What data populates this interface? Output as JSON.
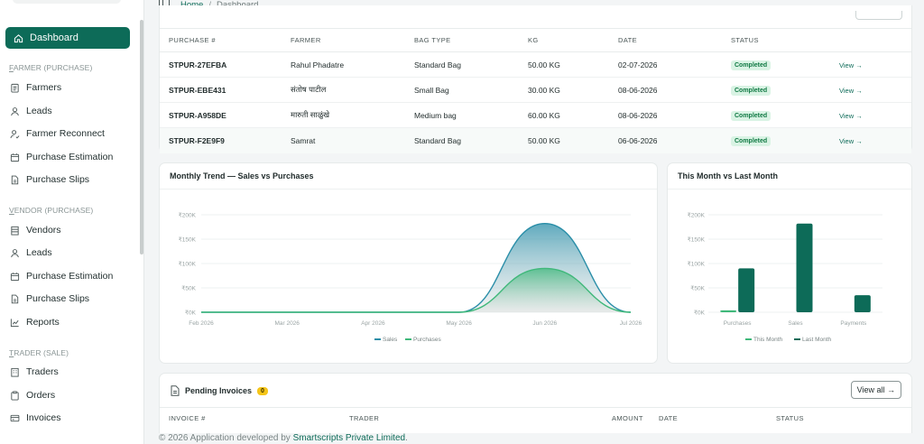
{
  "sidebar": {
    "active": {
      "label": "Dashboard",
      "icon": "home-icon"
    },
    "sections": [
      {
        "label": "FARMER (PURCHASE)",
        "items": [
          {
            "label": "Farmers",
            "icon": "clipboard-icon"
          },
          {
            "label": "Leads",
            "icon": "user-icon"
          },
          {
            "label": "Farmer Reconnect",
            "icon": "user-check-icon"
          },
          {
            "label": "Purchase Estimation",
            "icon": "calculator-icon"
          },
          {
            "label": "Purchase Slips",
            "icon": "file-icon"
          }
        ]
      },
      {
        "label": "VENDOR (PURCHASE)",
        "items": [
          {
            "label": "Vendors",
            "icon": "store-icon"
          },
          {
            "label": "Leads",
            "icon": "user-icon"
          },
          {
            "label": "Purchase Estimation",
            "icon": "calculator-icon"
          },
          {
            "label": "Purchase Slips",
            "icon": "file-icon"
          },
          {
            "label": "Reports",
            "icon": "chart-icon"
          }
        ]
      },
      {
        "label": "TRADER (SALE)",
        "items": [
          {
            "label": "Traders",
            "icon": "building-icon"
          },
          {
            "label": "Orders",
            "icon": "clipboard-icon"
          },
          {
            "label": "Invoices",
            "icon": "invoice-icon"
          }
        ]
      }
    ]
  },
  "breadcrumb": {
    "home": "Home",
    "current": "Dashboard"
  },
  "purchases": {
    "columns": [
      "PURCHASE #",
      "FARMER",
      "BAG TYPE",
      "KG",
      "DATE",
      "STATUS",
      ""
    ],
    "rows": [
      {
        "id": "STPUR-27EFBA",
        "farmer": "Rahul Phadatre",
        "bag": "Standard Bag",
        "kg": "50.00 KG",
        "date": "02-07-2026",
        "status": "Completed",
        "action": "View →"
      },
      {
        "id": "STPUR-EBE431",
        "farmer": "संतोष पाटील",
        "bag": "Small Bag",
        "kg": "30.00 KG",
        "date": "08-06-2026",
        "status": "Completed",
        "action": "View →"
      },
      {
        "id": "STPUR-A958DE",
        "farmer": "मारुती साळुंखे",
        "bag": "Medium bag",
        "kg": "60.00 KG",
        "date": "08-06-2026",
        "status": "Completed",
        "action": "View →"
      },
      {
        "id": "STPUR-F2E9F9",
        "farmer": "Samrat",
        "bag": "Standard Bag",
        "kg": "50.00 KG",
        "date": "06-06-2026",
        "status": "Completed",
        "action": "View →"
      }
    ]
  },
  "trend": {
    "title": "Monthly Trend — Sales vs Purchases"
  },
  "compare": {
    "title": "This Month vs Last Month"
  },
  "chart_data": [
    {
      "type": "area",
      "title": "Monthly Trend — Sales vs Purchases",
      "x": [
        "Feb 2026",
        "Mar 2026",
        "Apr 2026",
        "May 2026",
        "Jun 2026",
        "Jul 2026"
      ],
      "yticks": [
        "₹0K",
        "₹50K",
        "₹100K",
        "₹150K",
        "₹200K"
      ],
      "ylim": [
        0,
        200000
      ],
      "series": [
        {
          "name": "Sales",
          "values": [
            0,
            0,
            0,
            0,
            182000,
            0
          ],
          "color": "#2a8ea8"
        },
        {
          "name": "Purchases",
          "values": [
            0,
            0,
            0,
            0,
            90000,
            0
          ],
          "color": "#3fb87a"
        }
      ],
      "legend": "bottom",
      "grid": true
    },
    {
      "type": "bar",
      "title": "This Month vs Last Month",
      "categories": [
        "Purchases",
        "Sales",
        "Payments"
      ],
      "yticks": [
        "₹0K",
        "₹50K",
        "₹100K",
        "₹150K",
        "₹200K"
      ],
      "ylim": [
        0,
        200000
      ],
      "series": [
        {
          "name": "This Month",
          "values": [
            4000,
            0,
            0
          ],
          "color": "#3fb87a"
        },
        {
          "name": "Last Month",
          "values": [
            90000,
            182000,
            35000
          ],
          "color": "#0d6b58"
        }
      ],
      "legend": "bottom",
      "grid": true
    }
  ],
  "invoices": {
    "title": "Pending Invoices",
    "count": "0",
    "view_all": "View all →",
    "columns": [
      "INVOICE #",
      "TRADER",
      "AMOUNT",
      "DATE",
      "STATUS"
    ]
  },
  "footer": {
    "prefix": "© 2026 Application developed by ",
    "company": "Smartscripts Private Limited",
    "suffix": "."
  }
}
